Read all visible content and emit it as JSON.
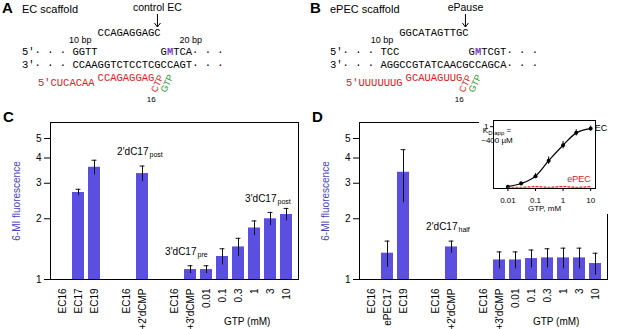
{
  "scaffolds": [
    {
      "panel": "A",
      "title": "EC scaffold",
      "pointer": "control EC",
      "bp_left": "10 bp",
      "bp_right": "20 bp",
      "bubble": "CCAGAGGAGC",
      "nontemplate": "5'· · · GGTT",
      "nontemplate_3": {
        "before": "G",
        "label": "M",
        "after": "TCA· · ·"
      },
      "template": "3'· · · CCAAGGTCTCCTCGCCAGT· · ·",
      "rna_5": "5'CUCACAA",
      "rna": "CCAGAGGAG",
      "ctp": "CTP",
      "gtp": "GTP",
      "rna_position": "16"
    },
    {
      "panel": "B",
      "title": "ePEC scaffold",
      "pointer": "ePause",
      "bp_left": "10 bp",
      "bubble": "GGCATAGTTGC",
      "nontemplate": "5'· · · TCC",
      "nontemplate_3": {
        "before": "G",
        "label": "M",
        "after": "TCGT· · ·"
      },
      "template": "3'· · · AGGCCGTATCAACGCCAGCA· · ·",
      "rna_5": "5'UUUUUUG",
      "rna": "GCAUAGUUG",
      "ctp": "CTP",
      "gtp": "GTP",
      "rna_position": "16"
    }
  ],
  "chart_data": [
    {
      "panel": "C",
      "type": "bar",
      "log": "y",
      "y_label": "6-MI fluorescence",
      "color": "#5a4fe0",
      "categories": [
        "EC16",
        "EC17",
        "EC19",
        null,
        "EC16",
        "+2'dCMP",
        null,
        "EC16",
        "+3'dCMP",
        "0.01",
        "0.1",
        "0.3",
        "1",
        "3",
        "10"
      ],
      "values": [
        1,
        2.7,
        3.6,
        null,
        1,
        3.35,
        null,
        1,
        1.12,
        1.12,
        1.3,
        1.45,
        1.8,
        2.0,
        2.1
      ],
      "errors": [
        null,
        0.1,
        0.3,
        null,
        null,
        0.3,
        null,
        null,
        0.05,
        0.05,
        0.12,
        0.15,
        0.15,
        0.15,
        0.15
      ],
      "ylim": [
        1,
        6
      ],
      "yticks": [
        1,
        2,
        3,
        4,
        5
      ],
      "x_group": {
        "label": "GTP (mM)",
        "from": "0.01",
        "to": "10"
      },
      "annotations": [
        {
          "text": "2'dC17",
          "sub": "post",
          "at": "+2'dCMP"
        },
        {
          "text": "3'dC17",
          "sub": "pre",
          "at": "+3'dCMP"
        },
        {
          "text": "3'dC17",
          "sub": "post",
          "at": "3"
        }
      ]
    },
    {
      "panel": "D",
      "type": "bar",
      "log": "y",
      "y_label": "6-MI fluorescence",
      "color": "#5a4fe0",
      "categories": [
        "EC16",
        "ePEC17",
        "EC19",
        null,
        "EC16",
        "+2'dCMP",
        null,
        "EC16",
        "+3'dCMP",
        "0.01",
        "0.1",
        "0.3",
        "1",
        "3",
        "10"
      ],
      "values": [
        1,
        1.35,
        3.4,
        null,
        1,
        1.45,
        null,
        1,
        1.25,
        1.25,
        1.27,
        1.28,
        1.28,
        1.28,
        1.2
      ],
      "errors": [
        null,
        0.2,
        1.0,
        null,
        null,
        0.1,
        null,
        null,
        0.12,
        0.12,
        0.13,
        0.14,
        0.15,
        0.15,
        0.15
      ],
      "ylim": [
        1,
        6
      ],
      "yticks": [
        1,
        2,
        3,
        4,
        5
      ],
      "x_group": {
        "label": "GTP (mM)",
        "from": "0.01",
        "to": "10"
      },
      "annotations": [
        {
          "text": "2'dC17",
          "sub": "half",
          "at": "+2'dCMP"
        }
      ],
      "inset": {
        "type": "line",
        "log": "x",
        "x_label": "GTP, mM",
        "x": [
          0.01,
          0.03,
          0.1,
          0.3,
          1,
          3,
          10
        ],
        "xlim": [
          0.003,
          15
        ],
        "xticks": [
          0.01,
          0.1,
          1,
          10
        ],
        "ylim": [
          0,
          1.1
        ],
        "yticks": [
          1
        ],
        "annotation": {
          "text": "K",
          "sub": "D,app",
          "after": " =",
          "value": "~400 µM"
        },
        "series": [
          {
            "name": "EC",
            "color": "#000000",
            "marker": "dot",
            "line_style": "solid",
            "values": [
              0.03,
              0.08,
              0.2,
              0.45,
              0.7,
              0.9,
              0.97
            ],
            "errors": [
              0.02,
              0.03,
              0.04,
              0.06,
              0.06,
              0.05,
              0.04
            ]
          },
          {
            "name": "ePEC",
            "color": "#e0201b",
            "marker": "none",
            "line_style": "dotted",
            "values": [
              0.02,
              0.02,
              0.03,
              0.02,
              0.03,
              0.02,
              0.03
            ]
          }
        ]
      }
    }
  ]
}
